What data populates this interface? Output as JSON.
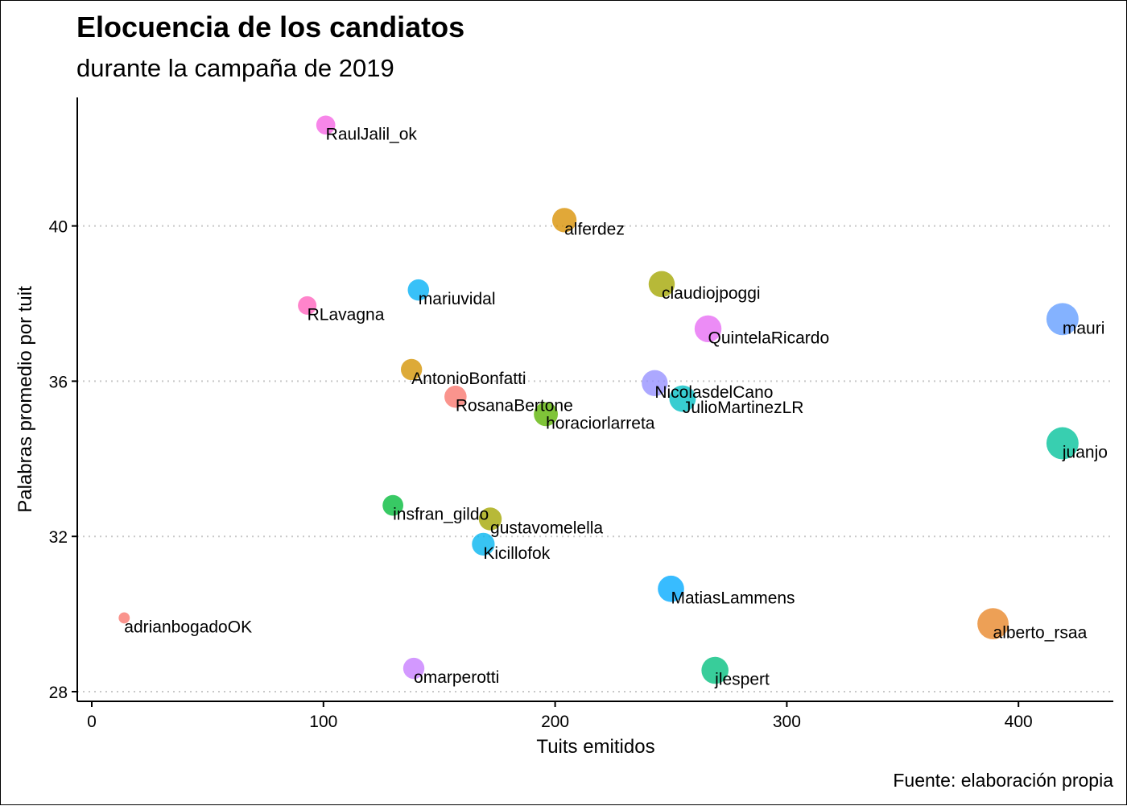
{
  "chart_data": {
    "type": "scatter",
    "title": "Elocuencia de los candiatos",
    "subtitle": "durante la campaña de 2019",
    "xlabel": "Tuits emitidos",
    "ylabel": "Palabras promedio por tuit",
    "caption": "Fuente: elaboración propia",
    "xlim": [
      -5,
      442
    ],
    "ylim": [
      27.8,
      43.3
    ],
    "x_ticks": [
      "0",
      "100",
      "200",
      "300",
      "400"
    ],
    "y_ticks": [
      "28",
      "32",
      "36",
      "40"
    ],
    "grid": "horizontal dotted",
    "legend": "none",
    "points": [
      {
        "label": "RaulJalil_ok",
        "x": 101,
        "y": 42.6,
        "color": "#F564E3"
      },
      {
        "label": "alferdez",
        "x": 204,
        "y": 40.15,
        "color": "#D89000"
      },
      {
        "label": "claudiojpoggi",
        "x": 246,
        "y": 38.5,
        "color": "#A3A500"
      },
      {
        "label": "mariuvidal",
        "x": 141,
        "y": 38.35,
        "color": "#00B0F6"
      },
      {
        "label": "RLavagna",
        "x": 93,
        "y": 37.95,
        "color": "#FF62BC"
      },
      {
        "label": "mauri",
        "x": 419,
        "y": 37.6,
        "color": "#619CFF"
      },
      {
        "label": "QuintelaRicardo",
        "x": 266,
        "y": 37.35,
        "color": "#E76BF3"
      },
      {
        "label": "AntonioBonfatti",
        "x": 138,
        "y": 36.3,
        "color": "#D39200"
      },
      {
        "label": "NicolasdelCano",
        "x": 243,
        "y": 35.95,
        "color": "#9590FF"
      },
      {
        "label": "RosanaBertone",
        "x": 157,
        "y": 35.6,
        "color": "#F8766D"
      },
      {
        "label": "JulioMartinezLR",
        "x": 255,
        "y": 35.55,
        "color": "#00BFC4"
      },
      {
        "label": "horaciorlarreta",
        "x": 196,
        "y": 35.15,
        "color": "#5BB300"
      },
      {
        "label": "juanjo",
        "x": 419,
        "y": 34.4,
        "color": "#00C19A"
      },
      {
        "label": "insfran_gildo",
        "x": 130,
        "y": 32.8,
        "color": "#00BA38"
      },
      {
        "label": "gustavomelella",
        "x": 172,
        "y": 32.45,
        "color": "#A3A500"
      },
      {
        "label": "Kicillofok",
        "x": 169,
        "y": 31.8,
        "color": "#00B4F0"
      },
      {
        "label": "MatiasLammens",
        "x": 250,
        "y": 30.65,
        "color": "#00A9FF"
      },
      {
        "label": "adrianbogadoOK",
        "x": 14,
        "y": 29.9,
        "color": "#F8766D"
      },
      {
        "label": "alberto_rsaa",
        "x": 389,
        "y": 29.75,
        "color": "#E88526"
      },
      {
        "label": "omarperotti",
        "x": 139,
        "y": 28.6,
        "color": "#C77CFF"
      },
      {
        "label": "jlespert",
        "x": 269,
        "y": 28.55,
        "color": "#00BF7D"
      }
    ]
  }
}
